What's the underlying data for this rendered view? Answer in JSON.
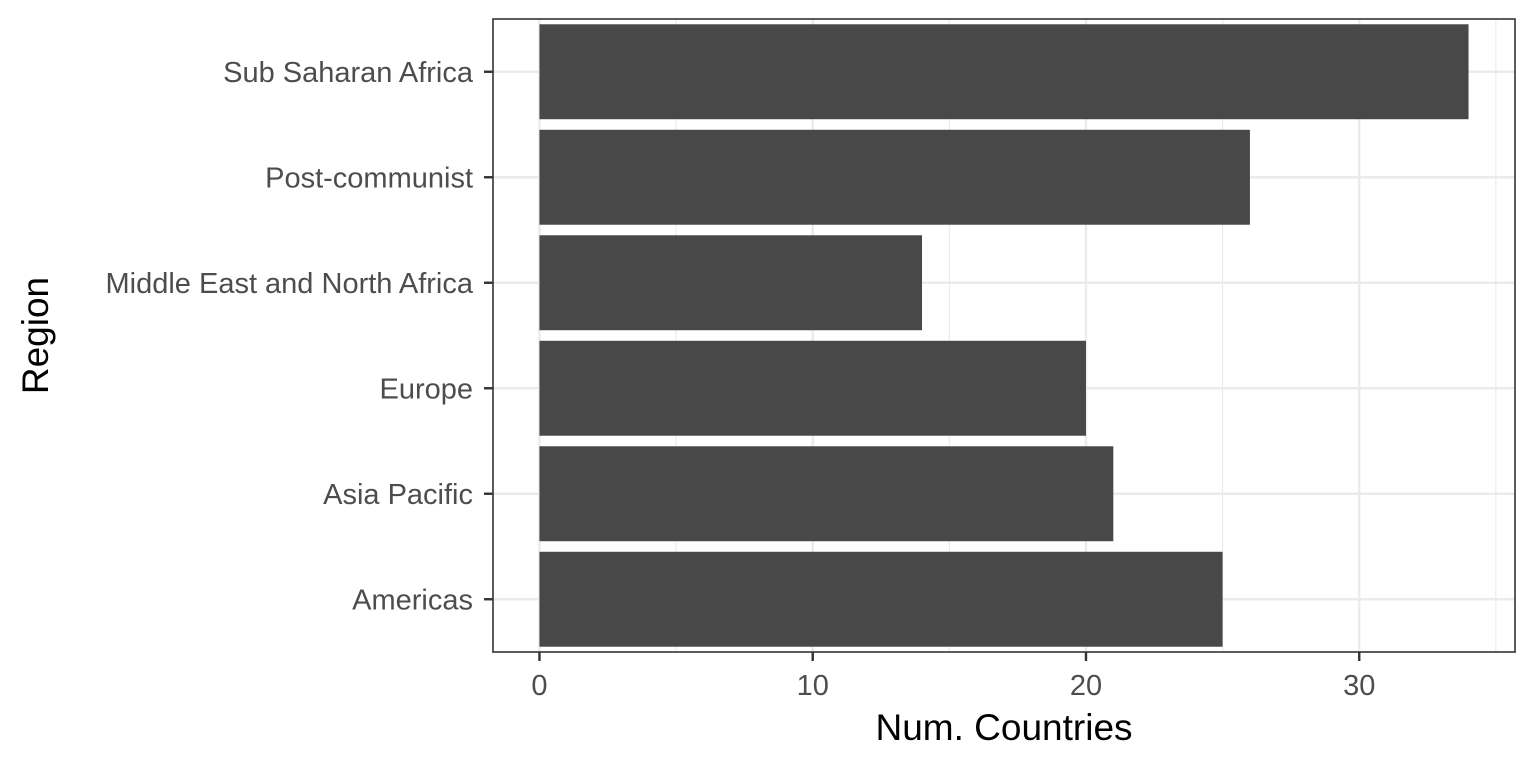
{
  "chart_data": {
    "type": "bar",
    "orientation": "horizontal",
    "categories": [
      "Americas",
      "Asia Pacific",
      "Europe",
      "Middle East and North Africa",
      "Post-communist",
      "Sub Saharan Africa"
    ],
    "values": [
      25,
      21,
      20,
      14,
      26,
      34
    ],
    "xlabel": "Num. Countries",
    "ylabel": "Region",
    "xlim": [
      -1.7,
      35.7
    ],
    "x_ticks": [
      0,
      10,
      20,
      30
    ],
    "grid": true,
    "bar_color": "#484848",
    "grid_color": "#ebebeb",
    "panel_border_color": "#333333"
  }
}
